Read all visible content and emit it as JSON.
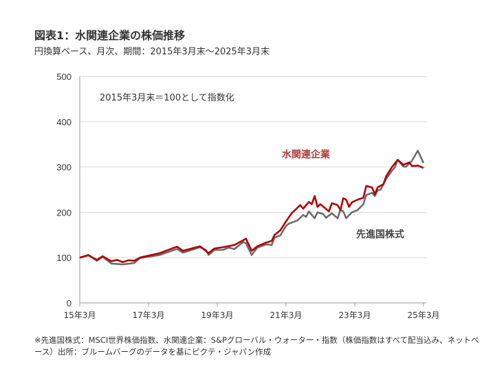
{
  "chart_data": {
    "type": "line",
    "title": "図表1：水関連企業の株価推移",
    "subtitle": "円換算ベース、月次、期間：2015年3月末～2025年3月末",
    "annotation": "2015年3月末＝100として指数化",
    "ylim": [
      0,
      500
    ],
    "yticks": [
      0,
      100,
      200,
      300,
      400,
      500
    ],
    "xlim": [
      "2015-03",
      "2025-03"
    ],
    "xticks": [
      {
        "date": "2015-03",
        "label": "15年3月"
      },
      {
        "date": "2017-03",
        "label": "17年3月"
      },
      {
        "date": "2019-03",
        "label": "19年3月"
      },
      {
        "date": "2021-03",
        "label": "21年3月"
      },
      {
        "date": "2023-03",
        "label": "23年3月"
      },
      {
        "date": "2025-03",
        "label": "25年3月"
      }
    ],
    "grid": true,
    "series": [
      {
        "name": "先進国株式",
        "color": "#6b6b6b",
        "points": [
          [
            "2015-03",
            100
          ],
          [
            "2015-06",
            106
          ],
          [
            "2015-09",
            93
          ],
          [
            "2015-11",
            102
          ],
          [
            "2016-02",
            87
          ],
          [
            "2016-06",
            85
          ],
          [
            "2016-10",
            88
          ],
          [
            "2016-12",
            99
          ],
          [
            "2017-07",
            106
          ],
          [
            "2017-12",
            117
          ],
          [
            "2018-01",
            119
          ],
          [
            "2018-03",
            111
          ],
          [
            "2018-09",
            123
          ],
          [
            "2018-11",
            117
          ],
          [
            "2018-12",
            106
          ],
          [
            "2019-02",
            117
          ],
          [
            "2019-05",
            117
          ],
          [
            "2019-07",
            122
          ],
          [
            "2019-09",
            119
          ],
          [
            "2019-12",
            134
          ],
          [
            "2020-01",
            132
          ],
          [
            "2020-03",
            106
          ],
          [
            "2020-05",
            122
          ],
          [
            "2020-08",
            129
          ],
          [
            "2020-10",
            128
          ],
          [
            "2020-11",
            144
          ],
          [
            "2021-01",
            149
          ],
          [
            "2021-03",
            170
          ],
          [
            "2021-04",
            175
          ],
          [
            "2021-07",
            182
          ],
          [
            "2021-09",
            194
          ],
          [
            "2021-10",
            190
          ],
          [
            "2021-11",
            202
          ],
          [
            "2022-01",
            187
          ],
          [
            "2022-02",
            200
          ],
          [
            "2022-04",
            196
          ],
          [
            "2022-05",
            188
          ],
          [
            "2022-07",
            198
          ],
          [
            "2022-09",
            187
          ],
          [
            "2022-10",
            205
          ],
          [
            "2022-11",
            202
          ],
          [
            "2022-12",
            187
          ],
          [
            "2023-02",
            200
          ],
          [
            "2023-04",
            205
          ],
          [
            "2023-06",
            218
          ],
          [
            "2023-07",
            238
          ],
          [
            "2023-09",
            243
          ],
          [
            "2023-10",
            236
          ],
          [
            "2023-11",
            248
          ],
          [
            "2023-12",
            250
          ],
          [
            "2024-02",
            274
          ],
          [
            "2024-04",
            292
          ],
          [
            "2024-05",
            299
          ],
          [
            "2024-06",
            316
          ],
          [
            "2024-08",
            301
          ],
          [
            "2024-09",
            301
          ],
          [
            "2024-11",
            314
          ],
          [
            "2025-01",
            336
          ],
          [
            "2025-03",
            309
          ]
        ]
      },
      {
        "name": "水関連企業",
        "color": "#b00000",
        "label_color": "#b03a3a",
        "points": [
          [
            "2015-03",
            100
          ],
          [
            "2015-06",
            105
          ],
          [
            "2015-09",
            95
          ],
          [
            "2015-11",
            103
          ],
          [
            "2016-02",
            92
          ],
          [
            "2016-04",
            95
          ],
          [
            "2016-06",
            90
          ],
          [
            "2016-08",
            94
          ],
          [
            "2016-10",
            93
          ],
          [
            "2016-12",
            100
          ],
          [
            "2017-07",
            110
          ],
          [
            "2017-12",
            122
          ],
          [
            "2018-01",
            124
          ],
          [
            "2018-03",
            115
          ],
          [
            "2018-09",
            125
          ],
          [
            "2018-12",
            110
          ],
          [
            "2019-02",
            120
          ],
          [
            "2019-05",
            123
          ],
          [
            "2019-09",
            128
          ],
          [
            "2019-12",
            138
          ],
          [
            "2020-01",
            142
          ],
          [
            "2020-03",
            115
          ],
          [
            "2020-05",
            125
          ],
          [
            "2020-08",
            133
          ],
          [
            "2020-10",
            137
          ],
          [
            "2020-11",
            150
          ],
          [
            "2021-01",
            160
          ],
          [
            "2021-03",
            180
          ],
          [
            "2021-05",
            198
          ],
          [
            "2021-08",
            216
          ],
          [
            "2021-09",
            208
          ],
          [
            "2021-11",
            223
          ],
          [
            "2021-12",
            218
          ],
          [
            "2022-01",
            236
          ],
          [
            "2022-02",
            212
          ],
          [
            "2022-03",
            218
          ],
          [
            "2022-06",
            202
          ],
          [
            "2022-07",
            220
          ],
          [
            "2022-09",
            216
          ],
          [
            "2022-10",
            205
          ],
          [
            "2022-11",
            231
          ],
          [
            "2022-12",
            228
          ],
          [
            "2023-01",
            212
          ],
          [
            "2023-02",
            222
          ],
          [
            "2023-04",
            228
          ],
          [
            "2023-06",
            232
          ],
          [
            "2023-07",
            258
          ],
          [
            "2023-09",
            255
          ],
          [
            "2023-10",
            240
          ],
          [
            "2023-11",
            255
          ],
          [
            "2024-01",
            262
          ],
          [
            "2024-02",
            280
          ],
          [
            "2024-04",
            300
          ],
          [
            "2024-06",
            316
          ],
          [
            "2024-07",
            310
          ],
          [
            "2024-08",
            305
          ],
          [
            "2024-10",
            310
          ],
          [
            "2024-11",
            302
          ],
          [
            "2025-01",
            303
          ],
          [
            "2025-03",
            298
          ]
        ]
      }
    ],
    "footnote": "※先進国株式：MSCI世界株価指数、水関連企業：S&Pグローバル・ウォーター・指数（株価指数はすべて配当込み、ネットベース）出所：ブルームバーグのデータを基にピクテ・ジャパン作成"
  }
}
